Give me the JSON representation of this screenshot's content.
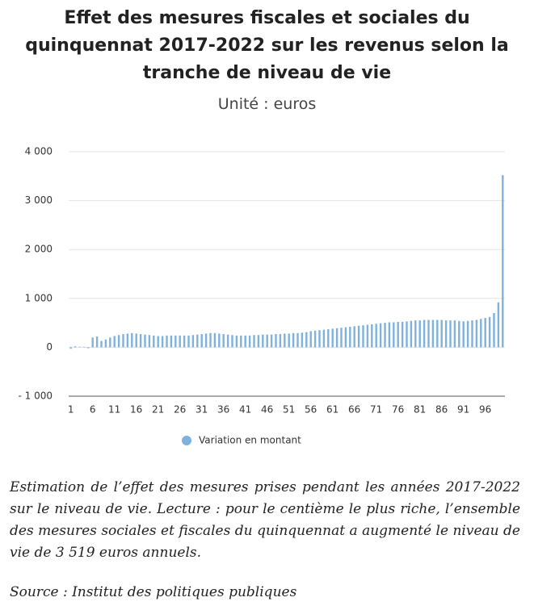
{
  "chart_data": {
    "type": "bar",
    "title": "Effet des mesures fiscales et sociales du quinquennat 2017-2022 sur les revenus selon la tranche de niveau de vie",
    "subtitle": "Unité : euros",
    "categories": [
      1,
      null,
      null,
      null,
      null,
      6,
      null,
      null,
      null,
      null,
      11,
      null,
      null,
      null,
      null,
      16,
      null,
      null,
      null,
      null,
      21,
      null,
      null,
      null,
      null,
      26,
      null,
      null,
      null,
      null,
      31,
      null,
      null,
      null,
      null,
      36,
      null,
      null,
      null,
      null,
      41,
      null,
      null,
      null,
      null,
      46,
      null,
      null,
      null,
      null,
      51,
      null,
      null,
      null,
      null,
      56,
      null,
      null,
      null,
      null,
      61,
      null,
      null,
      null,
      null,
      66,
      null,
      null,
      null,
      null,
      71,
      null,
      null,
      null,
      null,
      76,
      null,
      null,
      null,
      null,
      81,
      null,
      null,
      null,
      null,
      86,
      null,
      null,
      null,
      null,
      91,
      null,
      null,
      null,
      null,
      96,
      null,
      null,
      null,
      null
    ],
    "series": [
      {
        "name": "Variation en montant",
        "color": "#7eb2dc",
        "values": [
          -30,
          20,
          10,
          10,
          -20,
          200,
          220,
          130,
          160,
          200,
          230,
          250,
          270,
          280,
          290,
          280,
          270,
          260,
          250,
          240,
          230,
          230,
          240,
          240,
          240,
          240,
          240,
          240,
          250,
          260,
          270,
          280,
          290,
          290,
          280,
          270,
          260,
          250,
          240,
          240,
          240,
          240,
          250,
          250,
          260,
          260,
          260,
          270,
          270,
          280,
          280,
          290,
          290,
          300,
          310,
          330,
          340,
          350,
          360,
          370,
          380,
          390,
          400,
          410,
          420,
          430,
          440,
          450,
          460,
          470,
          480,
          490,
          500,
          510,
          510,
          520,
          520,
          530,
          540,
          550,
          550,
          560,
          560,
          560,
          560,
          560,
          550,
          550,
          550,
          540,
          530,
          540,
          550,
          560,
          580,
          600,
          620,
          700,
          920,
          3519
        ]
      }
    ],
    "ylim": [
      -1000,
      4000
    ],
    "yticks": [
      {
        "value": -1000,
        "label": "- 1 000"
      },
      0,
      {
        "value": 1000,
        "label": "1 000"
      },
      {
        "value": 2000,
        "label": "2 000"
      },
      {
        "value": 3000,
        "label": "3 000"
      },
      {
        "value": 4000,
        "label": "4 000"
      }
    ],
    "grid": true,
    "caption": "Estimation de l’effet des mesures prises pendant les années 2017-2022 sur le niveau de vie. Lecture : pour le centième le plus riche, l’ensemble des mesures sociales et fiscales du quinquennat a augmenté le niveau de vie de 3 519 euros annuels.",
    "source": "Source : Institut des politiques publiques"
  }
}
